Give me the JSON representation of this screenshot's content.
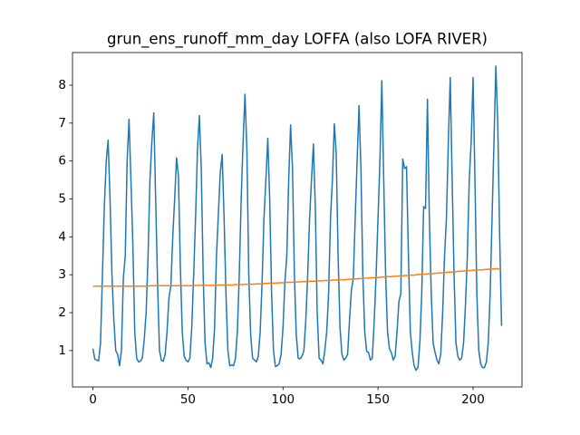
{
  "chart_data": {
    "type": "line",
    "title": "grun_ens_runoff_mm_day LOFFA (also LOFA RIVER)",
    "x": [
      0,
      1,
      2,
      3,
      4,
      5,
      6,
      7,
      8,
      9,
      10,
      11,
      12,
      13,
      14,
      15,
      16,
      17,
      18,
      19,
      20,
      21,
      22,
      23,
      24,
      25,
      26,
      27,
      28,
      29,
      30,
      31,
      32,
      33,
      34,
      35,
      36,
      37,
      38,
      39,
      40,
      41,
      42,
      43,
      44,
      45,
      46,
      47,
      48,
      49,
      50,
      51,
      52,
      53,
      54,
      55,
      56,
      57,
      58,
      59,
      60,
      61,
      62,
      63,
      64,
      65,
      66,
      67,
      68,
      69,
      70,
      71,
      72,
      73,
      74,
      75,
      76,
      77,
      78,
      79,
      80,
      81,
      82,
      83,
      84,
      85,
      86,
      87,
      88,
      89,
      90,
      91,
      92,
      93,
      94,
      95,
      96,
      97,
      98,
      99,
      100,
      101,
      102,
      103,
      104,
      105,
      106,
      107,
      108,
      109,
      110,
      111,
      112,
      113,
      114,
      115,
      116,
      117,
      118,
      119,
      120,
      121,
      122,
      123,
      124,
      125,
      126,
      127,
      128,
      129,
      130,
      131,
      132,
      133,
      134,
      135,
      136,
      137,
      138,
      139,
      140,
      141,
      142,
      143,
      144,
      145,
      146,
      147,
      148,
      149,
      150,
      151,
      152,
      153,
      154,
      155,
      156,
      157,
      158,
      159,
      160,
      161,
      162,
      163,
      164,
      165,
      166,
      167,
      168,
      169,
      170,
      171,
      172,
      173,
      174,
      175,
      176,
      177,
      178,
      179,
      180,
      181,
      182,
      183,
      184,
      185,
      186,
      187,
      188,
      189,
      190,
      191,
      192,
      193,
      194,
      195,
      196,
      197,
      198,
      199,
      200,
      201,
      202,
      203,
      204,
      205,
      206,
      207,
      208,
      209,
      210,
      211,
      212,
      213,
      214,
      215
    ],
    "series": [
      {
        "color": "#1f77b4",
        "values": [
          1.05,
          0.77,
          0.75,
          0.73,
          1.2,
          3.0,
          4.8,
          6.0,
          6.55,
          5.0,
          3.0,
          1.8,
          1.0,
          0.9,
          0.6,
          1.0,
          2.9,
          3.5,
          6.0,
          7.1,
          5.5,
          3.8,
          1.5,
          0.8,
          0.7,
          0.72,
          0.8,
          1.3,
          2.0,
          3.5,
          5.5,
          6.5,
          7.27,
          5.0,
          2.8,
          1.0,
          0.75,
          0.72,
          0.9,
          1.5,
          2.4,
          2.7,
          4.0,
          5.0,
          6.08,
          5.6,
          3.2,
          1.5,
          0.85,
          0.75,
          0.7,
          0.8,
          1.6,
          3.0,
          4.5,
          6.3,
          7.2,
          5.8,
          3.0,
          1.2,
          0.65,
          0.68,
          0.55,
          0.8,
          1.6,
          3.5,
          4.6,
          5.7,
          6.17,
          4.5,
          2.5,
          1.0,
          0.6,
          0.62,
          0.6,
          0.8,
          1.5,
          3.0,
          5.0,
          6.5,
          7.76,
          6.3,
          3.0,
          1.4,
          0.8,
          0.75,
          0.7,
          0.85,
          1.5,
          2.8,
          4.5,
          5.5,
          6.6,
          5.0,
          2.5,
          1.0,
          0.58,
          0.6,
          0.65,
          0.9,
          1.6,
          2.8,
          3.5,
          5.5,
          6.95,
          5.8,
          3.0,
          1.4,
          0.8,
          0.78,
          0.85,
          1.0,
          1.8,
          3.0,
          4.5,
          5.5,
          6.45,
          4.8,
          2.0,
          0.8,
          0.75,
          0.65,
          1.0,
          1.5,
          2.5,
          4.5,
          5.5,
          6.98,
          6.2,
          3.5,
          1.6,
          0.9,
          0.75,
          0.8,
          0.9,
          1.8,
          2.6,
          2.9,
          4.5,
          6.0,
          7.46,
          5.8,
          3.0,
          1.5,
          0.98,
          0.95,
          0.75,
          0.8,
          1.8,
          3.0,
          4.5,
          6.0,
          8.12,
          5.5,
          3.0,
          1.5,
          1.05,
          0.95,
          0.75,
          0.85,
          1.5,
          2.3,
          2.5,
          6.05,
          5.8,
          5.85,
          3.5,
          1.5,
          0.95,
          0.6,
          0.48,
          0.55,
          1.2,
          2.5,
          4.8,
          4.75,
          7.63,
          4.5,
          2.5,
          1.2,
          0.95,
          0.75,
          0.65,
          0.9,
          2.0,
          3.5,
          4.5,
          6.5,
          8.2,
          5.5,
          3.0,
          1.2,
          0.85,
          0.75,
          0.8,
          1.2,
          2.2,
          3.5,
          5.5,
          6.5,
          8.2,
          5.5,
          2.5,
          1.0,
          0.65,
          0.55,
          0.55,
          0.7,
          1.2,
          2.5,
          4.5,
          6.5,
          8.5,
          7.0,
          4.0,
          1.65
        ]
      },
      {
        "color": "#ff7f0e",
        "values": [
          2.7,
          2.7,
          2.7,
          2.7,
          2.7,
          2.7,
          2.7,
          2.7,
          2.7,
          2.7,
          2.7,
          2.7,
          2.7,
          2.7,
          2.7,
          2.7,
          2.7,
          2.7,
          2.7,
          2.7,
          2.7,
          2.7,
          2.7,
          2.7,
          2.7,
          2.7,
          2.7,
          2.7,
          2.7,
          2.7,
          2.71,
          2.71,
          2.71,
          2.71,
          2.71,
          2.71,
          2.71,
          2.71,
          2.71,
          2.71,
          2.71,
          2.71,
          2.71,
          2.71,
          2.71,
          2.71,
          2.71,
          2.71,
          2.71,
          2.71,
          2.71,
          2.71,
          2.71,
          2.71,
          2.72,
          2.72,
          2.72,
          2.72,
          2.72,
          2.72,
          2.72,
          2.72,
          2.72,
          2.72,
          2.72,
          2.72,
          2.73,
          2.73,
          2.73,
          2.73,
          2.73,
          2.73,
          2.73,
          2.73,
          2.73,
          2.74,
          2.74,
          2.74,
          2.74,
          2.74,
          2.75,
          2.75,
          2.75,
          2.75,
          2.75,
          2.75,
          2.76,
          2.76,
          2.76,
          2.77,
          2.77,
          2.77,
          2.77,
          2.78,
          2.78,
          2.78,
          2.78,
          2.78,
          2.79,
          2.79,
          2.79,
          2.79,
          2.8,
          2.8,
          2.8,
          2.8,
          2.81,
          2.81,
          2.81,
          2.81,
          2.82,
          2.82,
          2.82,
          2.82,
          2.83,
          2.83,
          2.83,
          2.83,
          2.84,
          2.84,
          2.84,
          2.84,
          2.85,
          2.85,
          2.85,
          2.85,
          2.86,
          2.86,
          2.86,
          2.86,
          2.87,
          2.87,
          2.87,
          2.87,
          2.88,
          2.88,
          2.88,
          2.89,
          2.89,
          2.89,
          2.9,
          2.9,
          2.9,
          2.91,
          2.91,
          2.91,
          2.92,
          2.92,
          2.92,
          2.93,
          2.93,
          2.93,
          2.94,
          2.94,
          2.94,
          2.95,
          2.95,
          2.95,
          2.96,
          2.96,
          2.96,
          2.97,
          2.97,
          2.97,
          2.98,
          2.98,
          2.98,
          2.99,
          2.99,
          2.99,
          3.0,
          3.0,
          3.01,
          3.01,
          3.01,
          3.02,
          3.02,
          3.03,
          3.03,
          3.03,
          3.04,
          3.04,
          3.05,
          3.05,
          3.05,
          3.06,
          3.06,
          3.07,
          3.07,
          3.07,
          3.08,
          3.08,
          3.09,
          3.09,
          3.09,
          3.1,
          3.1,
          3.11,
          3.11,
          3.11,
          3.12,
          3.12,
          3.12,
          3.13,
          3.13,
          3.13,
          3.14,
          3.14,
          3.14,
          3.15,
          3.15,
          3.15,
          3.16,
          3.16,
          3.16,
          3.17
        ]
      }
    ],
    "xlim": [
      -10.75,
      225.75
    ],
    "xticks": [
      0,
      50,
      100,
      150,
      200
    ],
    "ylim": [
      0.04,
      8.86
    ],
    "yticks": [
      1,
      2,
      3,
      4,
      5,
      6,
      7,
      8
    ],
    "grid": false
  }
}
